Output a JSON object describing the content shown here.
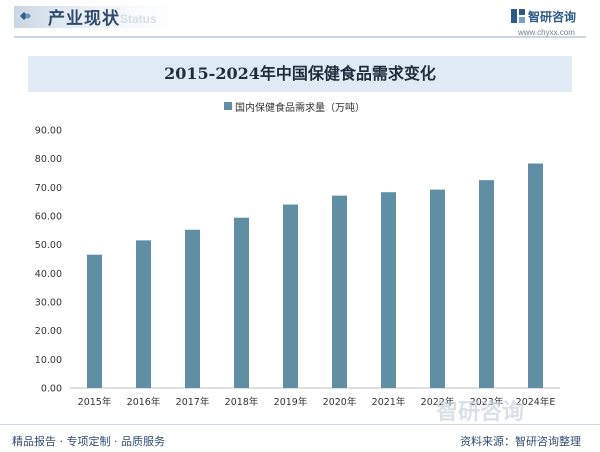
{
  "header": {
    "title": "产业现状",
    "watermark": "Status",
    "brand_name": "智研咨询",
    "brand_url": "www.chyxx.com"
  },
  "legend": {
    "label": "国内保健食品需求量（万吨）"
  },
  "footer": {
    "left": "精品报告 · 专项定制 · 品质服务",
    "right": "资料来源：智研咨询整理",
    "watermark": "智研咨询"
  },
  "colors": {
    "bar": "#5f8ea5",
    "title_bg": "#dfeaf4",
    "heading": "#2f4c6f"
  },
  "chart_data": {
    "type": "bar",
    "title": "2015-2024年中国保健食品需求变化",
    "xlabel": "",
    "ylabel": "",
    "categories": [
      "2015年",
      "2016年",
      "2017年",
      "2018年",
      "2019年",
      "2020年",
      "2021年",
      "2022年",
      "2023年",
      "2024年E"
    ],
    "series": [
      {
        "name": "国内保健食品需求量（万吨）",
        "values": [
          46.5,
          51.5,
          55.2,
          59.4,
          64.0,
          67.1,
          68.3,
          69.2,
          72.5,
          78.3
        ]
      }
    ],
    "ylim": [
      0,
      90
    ],
    "yticks": [
      "0.00",
      "10.00",
      "20.00",
      "30.00",
      "40.00",
      "50.00",
      "60.00",
      "70.00",
      "80.00",
      "90.00"
    ],
    "grid": false,
    "legend_position": "top-center"
  }
}
